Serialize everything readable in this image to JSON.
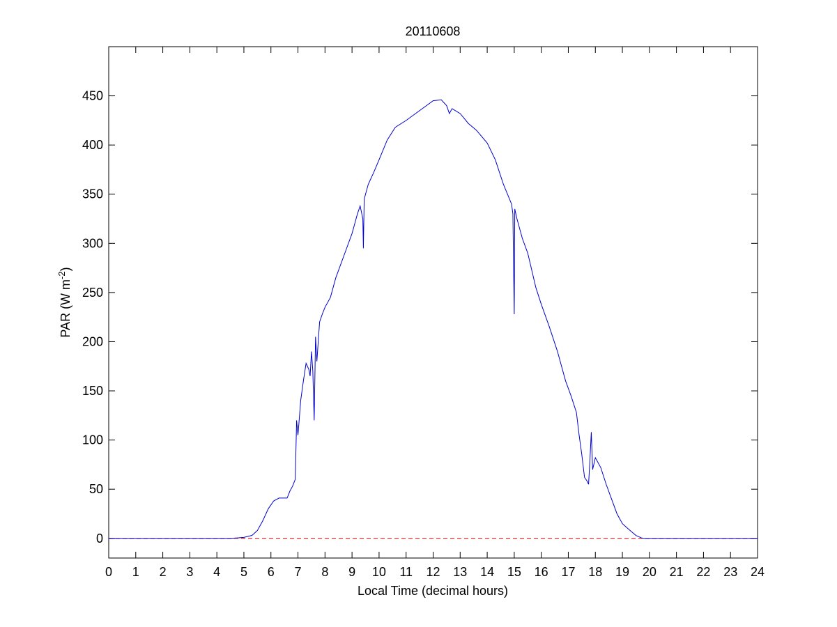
{
  "chart_data": {
    "type": "line",
    "title": "20110608",
    "xlabel": "Local Time (decimal hours)",
    "ylabel": {
      "main": "PAR (W m",
      "sup": "-2",
      "end": ")"
    },
    "series": [
      {
        "color": "#0000cc",
        "x": [
          0,
          4,
          4.5,
          4.8,
          5,
          5.3,
          5.5,
          5.7,
          5.9,
          6.1,
          6.3,
          6.6,
          6.7,
          6.8,
          6.9,
          6.95,
          7.0,
          7.05,
          7.1,
          7.2,
          7.3,
          7.4,
          7.45,
          7.5,
          7.55,
          7.6,
          7.65,
          7.7,
          7.8,
          7.9,
          8.0,
          8.2,
          8.4,
          8.6,
          8.8,
          9.0,
          9.2,
          9.3,
          9.4,
          9.42,
          9.45,
          9.6,
          9.8,
          10.0,
          10.3,
          10.6,
          11.0,
          11.5,
          12.0,
          12.3,
          12.5,
          12.6,
          12.7,
          13.0,
          13.3,
          13.6,
          14.0,
          14.3,
          14.6,
          14.9,
          14.95,
          15.0,
          15.02,
          15.1,
          15.3,
          15.5,
          15.8,
          16.0,
          16.3,
          16.6,
          16.9,
          17.1,
          17.3,
          17.4,
          17.5,
          17.6,
          17.7,
          17.75,
          17.8,
          17.85,
          17.9,
          18.0,
          18.2,
          18.4,
          18.6,
          18.8,
          19.0,
          19.2,
          19.5,
          19.7,
          19.8,
          24
        ],
        "values": [
          0,
          0,
          0,
          0.5,
          1,
          3,
          8,
          18,
          30,
          38,
          41,
          41,
          48,
          53,
          60,
          120,
          105,
          122,
          140,
          160,
          178,
          172,
          165,
          190,
          170,
          120,
          205,
          180,
          220,
          228,
          235,
          245,
          265,
          280,
          295,
          310,
          330,
          338,
          325,
          295,
          345,
          360,
          372,
          385,
          405,
          418,
          425,
          435,
          445,
          446,
          440,
          432,
          437,
          432,
          422,
          415,
          402,
          385,
          360,
          340,
          330,
          228,
          335,
          325,
          305,
          290,
          255,
          238,
          215,
          190,
          160,
          145,
          128,
          105,
          85,
          62,
          58,
          55,
          80,
          108,
          70,
          82,
          72,
          55,
          40,
          25,
          15,
          10,
          3,
          0.5,
          0,
          0
        ]
      }
    ],
    "hline": {
      "value": 0,
      "color": "#cc0000",
      "style": "dashed"
    },
    "xlim": [
      0,
      24
    ],
    "ylim": [
      -20,
      500
    ],
    "xticks": [
      0,
      1,
      2,
      3,
      4,
      5,
      6,
      7,
      8,
      9,
      10,
      11,
      12,
      13,
      14,
      15,
      16,
      17,
      18,
      19,
      20,
      21,
      22,
      23,
      24
    ],
    "yticks": [
      0,
      50,
      100,
      150,
      200,
      250,
      300,
      350,
      400,
      450
    ]
  }
}
